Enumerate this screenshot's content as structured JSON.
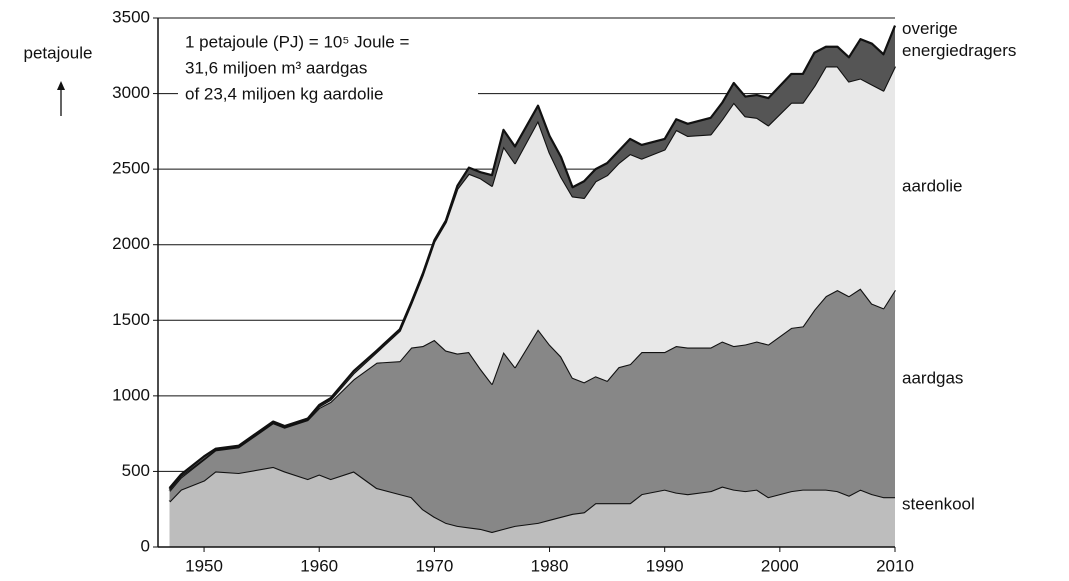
{
  "chart_data": {
    "type": "stacked-area",
    "y_label": "petajoule",
    "annotation": [
      "1 petajoule (PJ) = 10⁵ Joule =",
      "31,6 miljoen m³ aardgas",
      "of 23,4 miljoen kg aardolie"
    ],
    "x": [
      1947,
      1948,
      1950,
      1951,
      1953,
      1956,
      1957,
      1959,
      1960,
      1961,
      1963,
      1965,
      1967,
      1968,
      1969,
      1970,
      1971,
      1972,
      1973,
      1974,
      1975,
      1976,
      1977,
      1979,
      1980,
      1981,
      1982,
      1983,
      1984,
      1985,
      1986,
      1987,
      1988,
      1990,
      1991,
      1992,
      1994,
      1995,
      1996,
      1997,
      1998,
      1999,
      2001,
      2002,
      2003,
      2004,
      2005,
      2006,
      2007,
      2008,
      2009,
      2010
    ],
    "series": [
      {
        "name": "steenkool",
        "color": "#bdbdbd",
        "values": [
          300,
          380,
          440,
          500,
          490,
          530,
          500,
          450,
          480,
          450,
          500,
          390,
          350,
          330,
          250,
          200,
          160,
          140,
          130,
          120,
          100,
          120,
          140,
          160,
          180,
          200,
          220,
          230,
          290,
          290,
          290,
          290,
          350,
          380,
          360,
          350,
          370,
          400,
          380,
          370,
          380,
          330,
          370,
          380,
          380,
          380,
          370,
          340,
          380,
          350,
          330,
          330
        ]
      },
      {
        "name": "aardolie",
        "color": "#878787",
        "values": [
          70,
          80,
          140,
          140,
          170,
          290,
          290,
          390,
          440,
          510,
          610,
          830,
          880,
          990,
          1080,
          1170,
          1140,
          1140,
          1160,
          1060,
          980,
          1170,
          1050,
          1280,
          1160,
          1060,
          900,
          860,
          840,
          810,
          900,
          920,
          940,
          910,
          970,
          970,
          950,
          960,
          950,
          970,
          980,
          1010,
          1080,
          1080,
          1190,
          1280,
          1330,
          1320,
          1330,
          1260,
          1250,
          1370
        ]
      },
      {
        "name": "aardgas",
        "color": "#e8e8e8",
        "values": [
          10,
          10,
          5,
          5,
          5,
          5,
          5,
          5,
          10,
          15,
          40,
          70,
          200,
          290,
          470,
          650,
          850,
          1090,
          1180,
          1260,
          1310,
          1360,
          1350,
          1380,
          1270,
          1190,
          1200,
          1220,
          1290,
          1360,
          1350,
          1390,
          1280,
          1340,
          1430,
          1400,
          1410,
          1470,
          1610,
          1510,
          1480,
          1450,
          1490,
          1480,
          1480,
          1520,
          1480,
          1420,
          1390,
          1450,
          1440,
          1480
        ]
      },
      {
        "name": "overige energiedragers",
        "color": "#555555",
        "values": [
          10,
          10,
          15,
          5,
          5,
          5,
          5,
          5,
          10,
          10,
          15,
          10,
          10,
          10,
          10,
          10,
          10,
          20,
          40,
          40,
          70,
          110,
          110,
          100,
          110,
          130,
          60,
          110,
          80,
          80,
          80,
          100,
          90,
          70,
          70,
          80,
          110,
          110,
          130,
          130,
          150,
          180,
          190,
          190,
          220,
          130,
          130,
          160,
          260,
          270,
          240,
          270
        ]
      }
    ],
    "xlim": [
      1946,
      2010
    ],
    "xticks": [
      1950,
      1960,
      1970,
      1980,
      1990,
      2000,
      2010
    ],
    "ylim": [
      0,
      3500
    ],
    "yticks": [
      0,
      500,
      1000,
      1500,
      2000,
      2500,
      3000,
      3500
    ],
    "grid": true
  }
}
